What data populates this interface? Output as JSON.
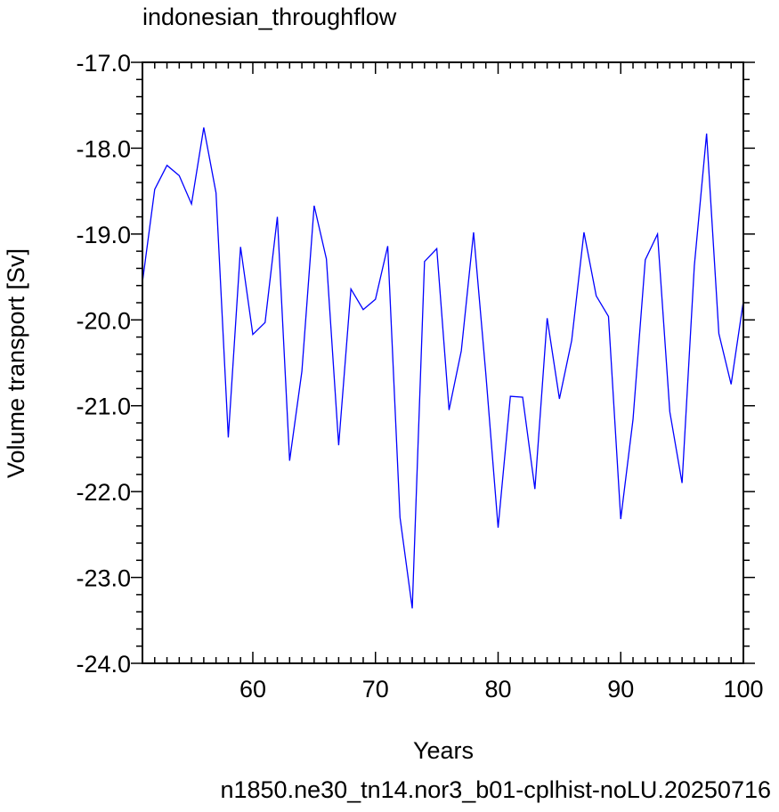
{
  "chart_data": {
    "type": "line",
    "title": "indonesian_throughflow",
    "xlabel": "Years",
    "ylabel": "Volume transport [Sv]",
    "subtitle": "n1850.ne30_tn14.nor3_b01-cplhist-noLU.20250716",
    "xlim": [
      51,
      100
    ],
    "ylim": [
      -24.0,
      -17.0
    ],
    "x_ticks": [
      60,
      70,
      80,
      90,
      100
    ],
    "y_ticks": [
      "-24.0",
      "-23.0",
      "-22.0",
      "-21.0",
      "-20.0",
      "-19.0",
      "-18.0",
      "-17.0"
    ],
    "line_color": "#0000ff",
    "subtitle_color": "#0000ff",
    "series": [
      {
        "x": [
          51,
          52,
          53,
          54,
          55,
          56,
          57,
          58,
          59,
          60,
          61,
          62,
          63,
          64,
          65,
          66,
          67,
          68,
          69,
          70,
          71,
          72,
          73,
          74,
          75,
          76,
          77,
          78,
          79,
          80,
          81,
          82,
          83,
          84,
          85,
          86,
          87,
          88,
          89,
          90,
          91,
          92,
          93,
          94,
          95,
          96,
          97,
          98,
          99,
          100
        ],
        "values": [
          -19.56,
          -18.48,
          -18.2,
          -18.32,
          -18.65,
          -17.76,
          -18.52,
          -21.37,
          -19.15,
          -20.17,
          -20.03,
          -18.8,
          -21.64,
          -20.6,
          -18.67,
          -19.29,
          -21.46,
          -19.64,
          -19.88,
          -19.76,
          -19.14,
          -22.3,
          -23.36,
          -19.32,
          -19.17,
          -21.05,
          -20.36,
          -18.98,
          -20.63,
          -22.42,
          -20.89,
          -20.9,
          -21.97,
          -19.98,
          -20.92,
          -20.24,
          -18.98,
          -19.72,
          -19.96,
          -22.32,
          -21.16,
          -19.3,
          -19.0,
          -21.07,
          -21.9,
          -19.37,
          -17.83,
          -20.16,
          -20.75,
          -19.78
        ]
      }
    ]
  }
}
